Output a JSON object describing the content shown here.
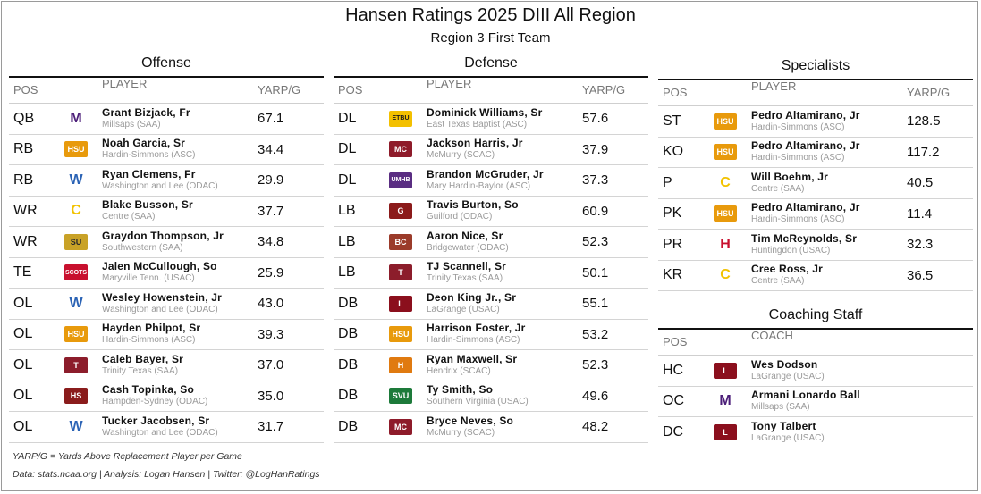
{
  "title": "Hansen Ratings 2025 DIII All Region",
  "subtitle": "Region 3 First Team",
  "offense": {
    "title": "Offense",
    "headers": {
      "pos": "POS",
      "player": "PLAYER",
      "val": "YARP/G"
    },
    "rows": [
      {
        "pos": "QB",
        "name": "Grant Bizjack, Fr",
        "school": "Millsaps (SAA)",
        "val": "67.1",
        "logo": "millsaps-logo"
      },
      {
        "pos": "RB",
        "name": "Noah Garcia, Sr",
        "school": "Hardin-Simmons (ASC)",
        "val": "34.4",
        "logo": "hsu-logo"
      },
      {
        "pos": "RB",
        "name": "Ryan Clemens, Fr",
        "school": "Washington and Lee (ODAC)",
        "val": "29.9",
        "logo": "wl-logo"
      },
      {
        "pos": "WR",
        "name": "Blake Busson, Sr",
        "school": "Centre (SAA)",
        "val": "37.7",
        "logo": "centre-logo"
      },
      {
        "pos": "WR",
        "name": "Graydon Thompson, Jr",
        "school": "Southwestern (SAA)",
        "val": "34.8",
        "logo": "southwestern-logo"
      },
      {
        "pos": "TE",
        "name": "Jalen McCullough, So",
        "school": "Maryville Tenn. (USAC)",
        "val": "25.9",
        "logo": "maryville-logo"
      },
      {
        "pos": "OL",
        "name": "Wesley Howenstein, Jr",
        "school": "Washington and Lee (ODAC)",
        "val": "43.0",
        "logo": "wl-logo"
      },
      {
        "pos": "OL",
        "name": "Hayden Philpot, Sr",
        "school": "Hardin-Simmons (ASC)",
        "val": "39.3",
        "logo": "hsu-logo"
      },
      {
        "pos": "OL",
        "name": "Caleb Bayer, Sr",
        "school": "Trinity Texas (SAA)",
        "val": "37.0",
        "logo": "trinity-logo"
      },
      {
        "pos": "OL",
        "name": "Cash Topinka, So",
        "school": "Hampden-Sydney (ODAC)",
        "val": "35.0",
        "logo": "hampden-logo"
      },
      {
        "pos": "OL",
        "name": "Tucker Jacobsen, Sr",
        "school": "Washington and Lee (ODAC)",
        "val": "31.7",
        "logo": "wl-logo"
      }
    ]
  },
  "defense": {
    "title": "Defense",
    "headers": {
      "pos": "POS",
      "player": "PLAYER",
      "val": "YARP/G"
    },
    "rows": [
      {
        "pos": "DL",
        "name": "Dominick Williams, Sr",
        "school": "East Texas Baptist (ASC)",
        "val": "57.6",
        "logo": "etbu-logo"
      },
      {
        "pos": "DL",
        "name": "Jackson Harris, Jr",
        "school": "McMurry (SCAC)",
        "val": "37.9",
        "logo": "mcmurry-logo"
      },
      {
        "pos": "DL",
        "name": "Brandon McGruder, Jr",
        "school": "Mary Hardin-Baylor (ASC)",
        "val": "37.3",
        "logo": "umhb-logo"
      },
      {
        "pos": "LB",
        "name": "Travis Burton, So",
        "school": "Guilford (ODAC)",
        "val": "60.9",
        "logo": "guilford-logo"
      },
      {
        "pos": "LB",
        "name": "Aaron Nice, Sr",
        "school": "Bridgewater (ODAC)",
        "val": "52.3",
        "logo": "bridgewater-logo"
      },
      {
        "pos": "LB",
        "name": "TJ Scannell, Sr",
        "school": "Trinity Texas (SAA)",
        "val": "50.1",
        "logo": "trinity-logo"
      },
      {
        "pos": "DB",
        "name": "Deon King Jr., Sr",
        "school": "LaGrange (USAC)",
        "val": "55.1",
        "logo": "lagrange-logo"
      },
      {
        "pos": "DB",
        "name": "Harrison Foster, Jr",
        "school": "Hardin-Simmons (ASC)",
        "val": "53.2",
        "logo": "hsu-logo"
      },
      {
        "pos": "DB",
        "name": "Ryan Maxwell, Sr",
        "school": "Hendrix (SCAC)",
        "val": "52.3",
        "logo": "hendrix-logo"
      },
      {
        "pos": "DB",
        "name": "Ty Smith, So",
        "school": "Southern Virginia (USAC)",
        "val": "49.6",
        "logo": "svu-logo"
      },
      {
        "pos": "DB",
        "name": "Bryce Neves, So",
        "school": "McMurry (SCAC)",
        "val": "48.2",
        "logo": "mcmurry-logo"
      }
    ]
  },
  "specialists": {
    "title": "Specialists",
    "headers": {
      "pos": "POS",
      "player": "PLAYER",
      "val": "YARP/G"
    },
    "rows": [
      {
        "pos": "ST",
        "name": "Pedro Altamirano, Jr",
        "school": "Hardin-Simmons (ASC)",
        "val": "128.5",
        "logo": "hsu-logo"
      },
      {
        "pos": "KO",
        "name": "Pedro Altamirano, Jr",
        "school": "Hardin-Simmons (ASC)",
        "val": "117.2",
        "logo": "hsu-logo"
      },
      {
        "pos": "P",
        "name": "Will Boehm, Jr",
        "school": "Centre (SAA)",
        "val": "40.5",
        "logo": "centre-logo"
      },
      {
        "pos": "PK",
        "name": "Pedro Altamirano, Jr",
        "school": "Hardin-Simmons (ASC)",
        "val": "11.4",
        "logo": "hsu-logo"
      },
      {
        "pos": "PR",
        "name": "Tim McReynolds, Sr",
        "school": "Huntingdon (USAC)",
        "val": "32.3",
        "logo": "huntingdon-logo"
      },
      {
        "pos": "KR",
        "name": "Cree Ross, Jr",
        "school": "Centre (SAA)",
        "val": "36.5",
        "logo": "centre-logo"
      }
    ]
  },
  "coaching": {
    "title": "Coaching Staff",
    "headers": {
      "pos": "POS",
      "player": "COACH"
    },
    "rows": [
      {
        "pos": "HC",
        "name": "Wes Dodson",
        "school": "LaGrange (USAC)",
        "logo": "lagrange-logo"
      },
      {
        "pos": "OC",
        "name": "Armani Lonardo Ball",
        "school": "Millsaps (SAA)",
        "logo": "millsaps-logo"
      },
      {
        "pos": "DC",
        "name": "Tony Talbert",
        "school": "LaGrange (USAC)",
        "logo": "lagrange-logo"
      }
    ]
  },
  "footer": {
    "note": "YARP/G = Yards Above Replacement Player per Game",
    "credits": "Data: stats.ncaa.org | Analysis: Logan Hansen | Twitter: @LogHanRatings"
  },
  "logos": {
    "millsaps-logo": {
      "text": "M",
      "color": "#4b1e78",
      "bg": "#ffffff"
    },
    "hsu-logo": {
      "text": "HSU",
      "color": "#ffffff",
      "bg": "#e89a0c"
    },
    "wl-logo": {
      "text": "W",
      "color": "#2b63b5",
      "bg": "#ffffff"
    },
    "centre-logo": {
      "text": "C",
      "color": "#f2c200",
      "bg": "#ffffff"
    },
    "southwestern-logo": {
      "text": "SU",
      "color": "#2a2a2a",
      "bg": "#c9a227"
    },
    "maryville-logo": {
      "text": "SCOTS",
      "color": "#ffffff",
      "bg": "#c8102e"
    },
    "trinity-logo": {
      "text": "T",
      "color": "#ffffff",
      "bg": "#8c1d2b"
    },
    "hampden-logo": {
      "text": "HS",
      "color": "#ffffff",
      "bg": "#8a1c1c"
    },
    "etbu-logo": {
      "text": "ETBU",
      "color": "#1b1b1b",
      "bg": "#f3c000"
    },
    "mcmurry-logo": {
      "text": "MC",
      "color": "#ffffff",
      "bg": "#8e1b2a"
    },
    "umhb-logo": {
      "text": "UMHB",
      "color": "#ffffff",
      "bg": "#5a2d82"
    },
    "guilford-logo": {
      "text": "G",
      "color": "#ffffff",
      "bg": "#8b1a1a"
    },
    "bridgewater-logo": {
      "text": "BC",
      "color": "#ffffff",
      "bg": "#9b3b2a"
    },
    "lagrange-logo": {
      "text": "L",
      "color": "#ffffff",
      "bg": "#8b0f1d"
    },
    "hendrix-logo": {
      "text": "H",
      "color": "#ffffff",
      "bg": "#e07a10"
    },
    "svu-logo": {
      "text": "SVU",
      "color": "#ffffff",
      "bg": "#1d7a3a"
    },
    "huntingdon-logo": {
      "text": "H",
      "color": "#c8102e",
      "bg": "#ffffff"
    }
  }
}
